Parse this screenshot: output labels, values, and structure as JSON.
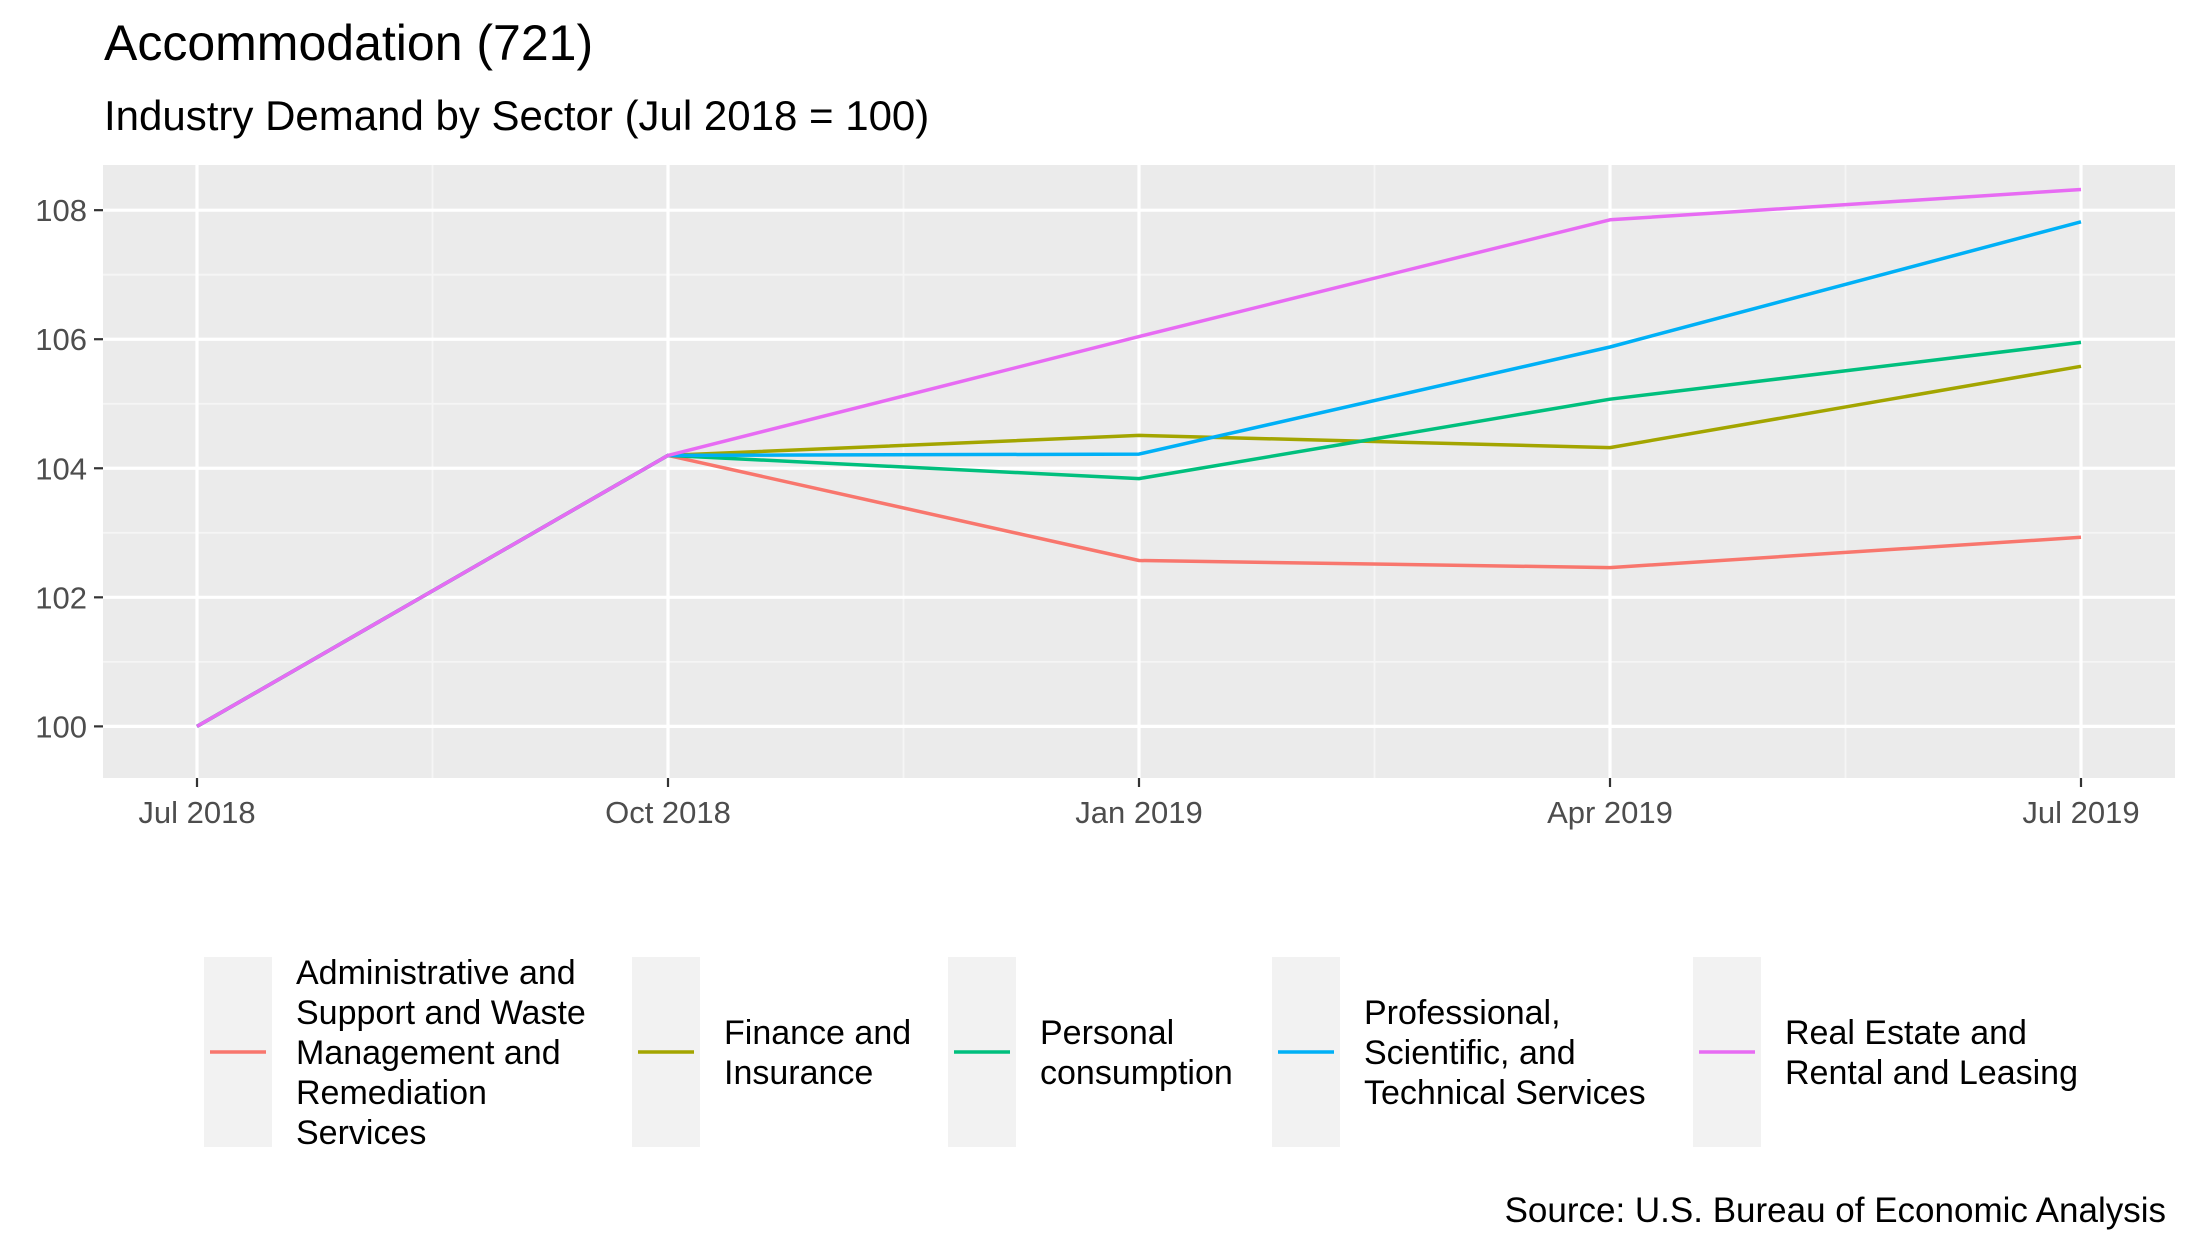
{
  "chart_data": {
    "type": "line",
    "title": "Accommodation (721)",
    "subtitle": "Industry Demand by Sector (Jul 2018 = 100)",
    "caption": "Source: U.S. Bureau of Economic Analysis",
    "x": [
      "Jul 2018",
      "Oct 2018",
      "Jan 2019",
      "Apr 2019",
      "Jul 2019"
    ],
    "y_ticks": [
      100,
      102,
      104,
      106,
      108
    ],
    "ylim": [
      99.2,
      108.7
    ],
    "grid": true,
    "legend_position": "bottom",
    "series": [
      {
        "name": "Administrative and Support and Waste Management and Remediation Services",
        "legend_lines": [
          "Administrative and",
          "Support and Waste",
          "Management and",
          "Remediation",
          "Services"
        ],
        "color": "#F8766D",
        "values": [
          100,
          104.2,
          102.57,
          102.46,
          102.93
        ]
      },
      {
        "name": "Finance and Insurance",
        "legend_lines": [
          "Finance and",
          "Insurance"
        ],
        "color": "#A3A500",
        "values": [
          100,
          104.2,
          104.51,
          104.32,
          105.58
        ]
      },
      {
        "name": "Personal consumption",
        "legend_lines": [
          "Personal",
          "consumption"
        ],
        "color": "#00BF7D",
        "values": [
          100,
          104.2,
          103.84,
          105.07,
          105.95
        ]
      },
      {
        "name": "Professional, Scientific, and Technical Services",
        "legend_lines": [
          "Professional,",
          "Scientific, and",
          "Technical Services"
        ],
        "color": "#00B0F6",
        "values": [
          100,
          104.2,
          104.22,
          105.88,
          107.82
        ]
      },
      {
        "name": "Real Estate and Rental and Leasing",
        "legend_lines": [
          "Real Estate and",
          "Rental and Leasing"
        ],
        "color": "#E76BF3",
        "values": [
          100,
          104.2,
          106.04,
          107.85,
          108.32
        ]
      }
    ],
    "colors": {
      "panel_background": "#EBEBEB",
      "grid_major": "#FFFFFF",
      "grid_minor": "#F5F5F5",
      "tick_text": "#4D4D4D",
      "legend_key_background": "#F2F2F2"
    }
  }
}
